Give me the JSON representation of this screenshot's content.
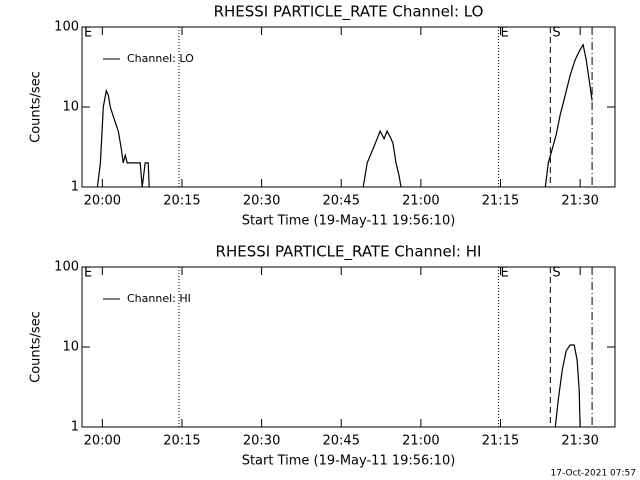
{
  "chart_data": [
    {
      "type": "line",
      "title": "RHESSI PARTICLE_RATE Channel: LO",
      "xlabel": "Start Time (19-May-11 19:56:10)",
      "ylabel": "Counts/sec",
      "x": [
        "19:59:04",
        "19:59:38",
        "20:00:11",
        "20:00:45",
        "20:01:07",
        "20:01:30",
        "20:02:15",
        "20:03:00",
        "20:03:34",
        "20:03:56",
        "20:04:19",
        "20:04:41",
        "20:07:08",
        "20:07:30",
        "20:08:04",
        "20:08:38",
        "20:08:49",
        "20:30:00",
        "20:49:08",
        "20:49:53",
        "20:51:00",
        "20:51:45",
        "20:52:19",
        "20:53:04",
        "20:53:38",
        "20:54:23",
        "20:54:45",
        "20:55:19",
        "20:55:53",
        "20:56:15",
        "21:10:00",
        "21:23:26",
        "21:24:00",
        "21:24:45",
        "21:25:30",
        "21:26:15",
        "21:27:11",
        "21:28:08",
        "21:29:04",
        "21:30:00",
        "21:30:34",
        "21:31:08",
        "21:31:41",
        "21:32:15"
      ],
      "series": [
        {
          "name": "Channel: LO",
          "color": "#000000",
          "values": [
            1,
            2,
            10,
            16,
            14,
            10,
            7,
            5,
            3,
            2,
            2.5,
            2,
            2,
            1,
            2,
            2,
            1,
            null,
            1,
            2,
            3,
            4,
            5,
            4,
            5,
            4,
            3.5,
            2,
            1.4,
            1,
            null,
            1,
            2,
            3,
            4.5,
            8,
            14,
            25,
            39,
            52,
            60,
            39,
            22,
            12
          ]
        }
      ],
      "xlim": [
        "19:56:10",
        "21:36:34"
      ],
      "xticks": [
        "20:00",
        "20:15",
        "20:30",
        "20:45",
        "21:00",
        "21:15",
        "21:30"
      ],
      "ylim": [
        1,
        100
      ],
      "yticks": [
        1,
        10,
        100
      ],
      "ylog": true,
      "legend": "upper-left",
      "markers": [
        {
          "x": "19:56:10",
          "label": "E",
          "style": "solid"
        },
        {
          "x": "20:14:26",
          "style": "dotted"
        },
        {
          "x": "21:14:38",
          "label": "E",
          "style": "dotted"
        },
        {
          "x": "21:24:23",
          "label": "S",
          "style": "dashed"
        },
        {
          "x": "21:32:15",
          "style": "dashdot"
        }
      ]
    },
    {
      "type": "line",
      "title": "RHESSI PARTICLE_RATE Channel: HI",
      "xlabel": "Start Time (19-May-11 19:56:10)",
      "ylabel": "Counts/sec",
      "x": [
        "21:25:19",
        "21:25:53",
        "21:26:38",
        "21:27:23",
        "21:28:08",
        "21:28:53",
        "21:29:26",
        "21:29:49",
        "21:30:00"
      ],
      "series": [
        {
          "name": "Channel: HI",
          "color": "#000000",
          "values": [
            1,
            2.2,
            5.2,
            9,
            10.6,
            10.6,
            6.9,
            2.9,
            1
          ]
        }
      ],
      "xlim": [
        "19:56:10",
        "21:36:34"
      ],
      "xticks": [
        "20:00",
        "20:15",
        "20:30",
        "20:45",
        "21:00",
        "21:15",
        "21:30"
      ],
      "ylim": [
        1,
        100
      ],
      "yticks": [
        1,
        10,
        100
      ],
      "ylog": true,
      "legend": "upper-left",
      "markers": [
        {
          "x": "19:56:10",
          "label": "E",
          "style": "solid"
        },
        {
          "x": "20:14:26",
          "style": "dotted"
        },
        {
          "x": "21:14:38",
          "label": "E",
          "style": "dotted"
        },
        {
          "x": "21:24:23",
          "label": "S",
          "style": "dashed"
        },
        {
          "x": "21:32:15",
          "style": "dashdot"
        }
      ]
    }
  ],
  "footer": "17-Oct-2021 07:57"
}
